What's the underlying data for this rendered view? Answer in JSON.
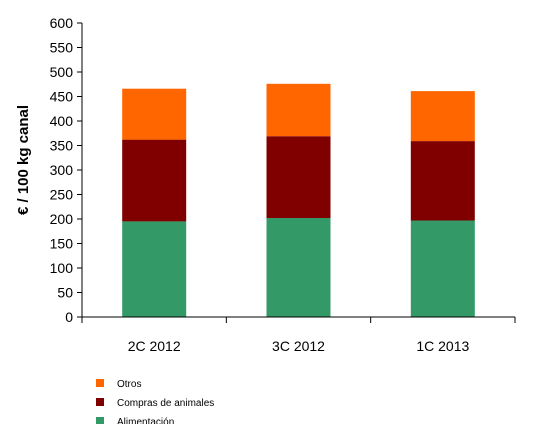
{
  "chart_data": {
    "type": "bar",
    "stacked": true,
    "categories": [
      "2C 2012",
      "3C 2012",
      "1C 2013"
    ],
    "series": [
      {
        "name": "Alimentación",
        "color": "#339966",
        "values": [
          195,
          202,
          197
        ]
      },
      {
        "name": "Compras de animales",
        "color": "#800000",
        "values": [
          167,
          167,
          162
        ]
      },
      {
        "name": "Otros",
        "color": "#ff6600",
        "values": [
          104,
          107,
          102
        ]
      }
    ],
    "ylabel": "€ / 100 kg canal",
    "xlabel": "",
    "ylim": [
      0,
      600
    ],
    "yticks": [
      0,
      50,
      100,
      150,
      200,
      250,
      300,
      350,
      400,
      450,
      500,
      550,
      600
    ],
    "grid": false,
    "legend_position": "bottom-left",
    "legend_order": [
      "Otros",
      "Compras de animales",
      "Alimentación"
    ]
  }
}
